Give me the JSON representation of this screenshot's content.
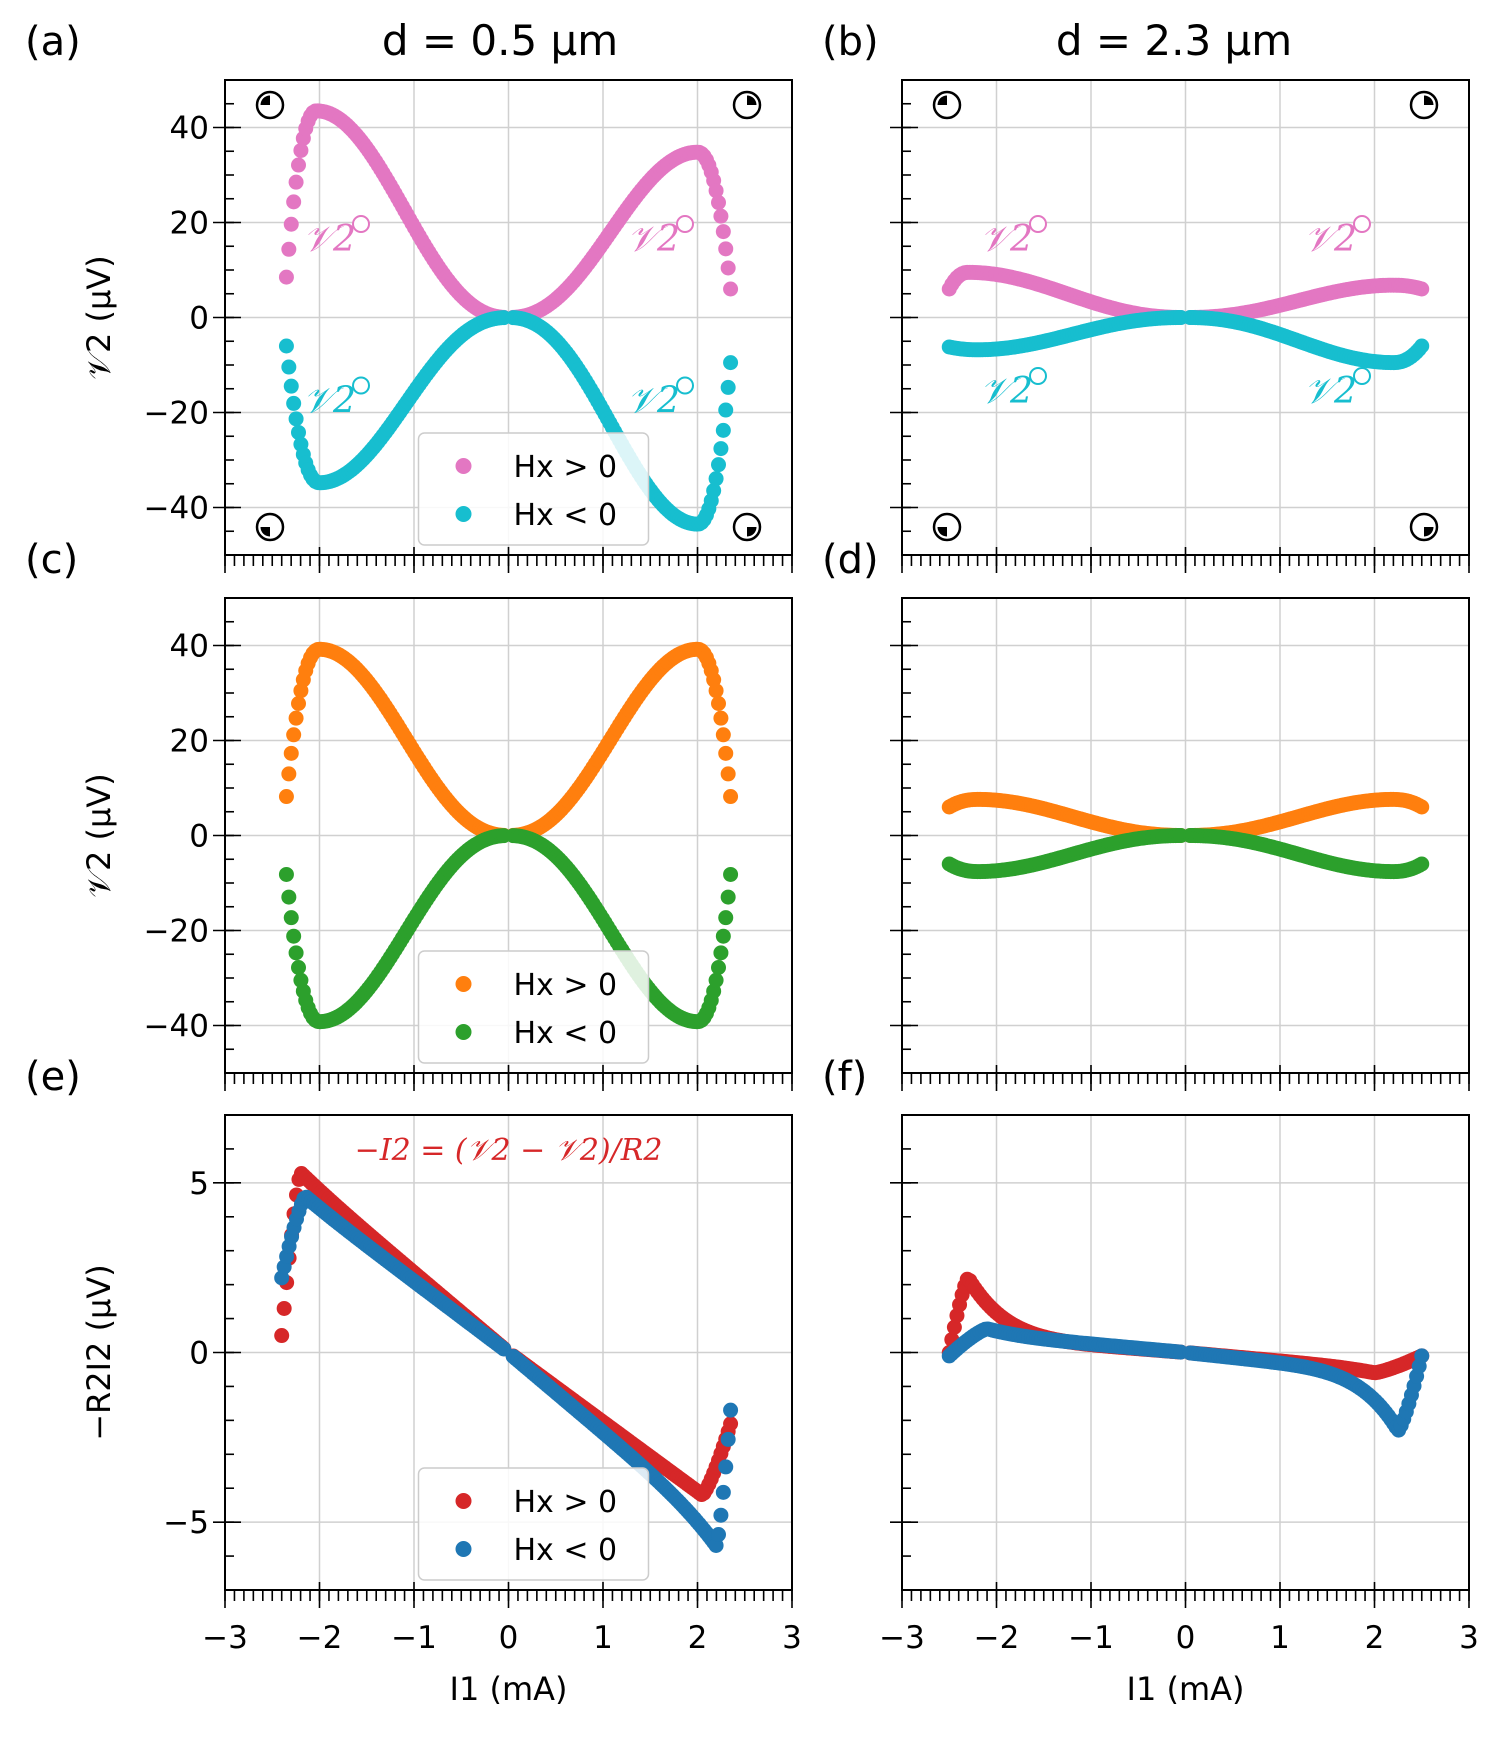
{
  "figure": {
    "column_titles": [
      "d = 0.5 μm",
      "d = 2.3 μm"
    ],
    "x_axis_label": "I1 (mA)",
    "x_ticks": [
      "−3",
      "−2",
      "−1",
      "0",
      "1",
      "2",
      "3"
    ]
  },
  "chart_data": [
    {
      "panel": "(a)",
      "type": "scatter",
      "ylabel": "𝒱2 (μV)",
      "xlim": [
        -3,
        3
      ],
      "ylim": [
        -50,
        50
      ],
      "yticks": [
        40,
        20,
        0,
        -20,
        -40
      ],
      "ytick_labels": [
        "40",
        "20",
        "0",
        "−20",
        "−40"
      ],
      "show_ytick_labels": true,
      "show_legend": true,
      "legend_placement": "lower-center",
      "annotations": [
        "𝒱2",
        "𝒱2",
        "𝒱2",
        "𝒱2"
      ],
      "series": [
        {
          "name": "Hx > 0",
          "color": "#e377c2",
          "kind": "bell",
          "peak": 43.5,
          "peak_x_neg": -2.03,
          "peak_x_pos": 2.0,
          "peak_pos": 34.8,
          "end_x_neg": -2.35,
          "end_x_pos": 2.35,
          "end_neg": 8.5,
          "end_pos": 6.0
        },
        {
          "name": "Hx < 0",
          "color": "#17becf",
          "kind": "bell",
          "peak": -34.8,
          "peak_x_neg": -2.0,
          "peak_x_pos": 2.0,
          "peak_pos": -43.5,
          "end_x_neg": -2.35,
          "end_x_pos": 2.35,
          "end_neg": -6.0,
          "end_pos": -9.5
        }
      ]
    },
    {
      "panel": "(b)",
      "type": "scatter",
      "ylabel": "",
      "xlim": [
        -3,
        3
      ],
      "ylim": [
        -50,
        50
      ],
      "yticks": [
        40,
        20,
        0,
        -20,
        -40
      ],
      "ytick_labels": [],
      "show_ytick_labels": false,
      "show_legend": false,
      "annotations": [
        "𝒱2",
        "𝒱2",
        "𝒱2",
        "𝒱2"
      ],
      "series": [
        {
          "name": "Hx > 0",
          "color": "#e377c2",
          "kind": "bell",
          "peak": 9.5,
          "peak_x_neg": -2.3,
          "peak_x_pos": 2.2,
          "peak_pos": 6.8,
          "end_x_neg": -2.5,
          "end_x_pos": 2.5,
          "end_neg": 6.0,
          "end_pos": 6.0
        },
        {
          "name": "Hx < 0",
          "color": "#17becf",
          "kind": "bell",
          "peak": -6.8,
          "peak_x_neg": -2.2,
          "peak_x_pos": 2.2,
          "peak_pos": -9.5,
          "end_x_neg": -2.5,
          "end_x_pos": 2.5,
          "end_neg": -6.2,
          "end_pos": -6.0
        }
      ]
    },
    {
      "panel": "(c)",
      "type": "scatter",
      "ylabel": "𝒱2 (μV)",
      "xlim": [
        -3,
        3
      ],
      "ylim": [
        -50,
        50
      ],
      "yticks": [
        40,
        20,
        0,
        -20,
        -40
      ],
      "ytick_labels": [
        "40",
        "20",
        "0",
        "−20",
        "−40"
      ],
      "show_ytick_labels": true,
      "show_legend": true,
      "legend_placement": "lower-center",
      "series": [
        {
          "name": "Hx > 0",
          "color": "#ff7f0e",
          "kind": "bell",
          "peak": 39.2,
          "peak_x_neg": -2.0,
          "peak_x_pos": 2.0,
          "peak_pos": 39.2,
          "end_x_neg": -2.35,
          "end_x_pos": 2.35,
          "end_neg": 8.2,
          "end_pos": 8.2
        },
        {
          "name": "Hx < 0",
          "color": "#2ca02c",
          "kind": "bell",
          "peak": -39.2,
          "peak_x_neg": -2.0,
          "peak_x_pos": 2.0,
          "peak_pos": -39.2,
          "end_x_neg": -2.35,
          "end_x_pos": 2.35,
          "end_neg": -8.2,
          "end_pos": -8.2
        }
      ]
    },
    {
      "panel": "(d)",
      "type": "scatter",
      "ylabel": "",
      "xlim": [
        -3,
        3
      ],
      "ylim": [
        -50,
        50
      ],
      "yticks": [
        40,
        20,
        0,
        -20,
        -40
      ],
      "ytick_labels": [],
      "show_ytick_labels": false,
      "show_legend": false,
      "series": [
        {
          "name": "Hx > 0",
          "color": "#ff7f0e",
          "kind": "bell",
          "peak": 7.6,
          "peak_x_neg": -2.2,
          "peak_x_pos": 2.2,
          "peak_pos": 7.6,
          "end_x_neg": -2.5,
          "end_x_pos": 2.5,
          "end_neg": 6.0,
          "end_pos": 6.0
        },
        {
          "name": "Hx < 0",
          "color": "#2ca02c",
          "kind": "bell",
          "peak": -7.6,
          "peak_x_neg": -2.2,
          "peak_x_pos": 2.2,
          "peak_pos": -7.6,
          "end_x_neg": -2.5,
          "end_x_pos": 2.5,
          "end_neg": -6.0,
          "end_pos": -6.0
        }
      ]
    },
    {
      "panel": "(e)",
      "type": "scatter",
      "ylabel": "−R2I2 (μV)",
      "xlim": [
        -3,
        3
      ],
      "ylim": [
        -7,
        7
      ],
      "yticks": [
        5,
        0,
        -5
      ],
      "ytick_labels": [
        "5",
        "0",
        "−5"
      ],
      "show_ytick_labels": true,
      "show_legend": true,
      "legend_placement": "lower-center",
      "formula": "−I2 = (𝒱2 − 𝒱2)/R2",
      "series": [
        {
          "name": "Hx > 0",
          "color": "#d62728",
          "kind": "line",
          "slope_neg": -2.35,
          "slope_pos": -2.05,
          "peak_x_neg": -2.2,
          "peak_neg": 5.3,
          "peak_x_pos": 2.05,
          "peak_pos": -4.2,
          "end_x_neg": -2.4,
          "end_neg": 0.5,
          "end_x_pos": 2.35,
          "end_pos": -2.1
        },
        {
          "name": "Hx < 0",
          "color": "#1f77b4",
          "kind": "line",
          "slope_neg": -2.1,
          "slope_pos": -2.35,
          "peak_x_neg": -2.15,
          "peak_neg": 4.6,
          "peak_x_pos": 2.2,
          "peak_pos": -5.7,
          "end_x_neg": -2.4,
          "end_neg": 2.2,
          "end_x_pos": 2.35,
          "end_pos": -1.7
        }
      ]
    },
    {
      "panel": "(f)",
      "type": "scatter",
      "ylabel": "",
      "xlim": [
        -3,
        3
      ],
      "ylim": [
        -7,
        7
      ],
      "yticks": [
        5,
        0,
        -5
      ],
      "ytick_labels": [],
      "show_ytick_labels": false,
      "show_legend": false,
      "series": [
        {
          "name": "Hx > 0",
          "color": "#d62728",
          "kind": "line",
          "slope_neg": -0.22,
          "slope_pos": -0.25,
          "peak_x_neg": -2.3,
          "peak_neg": 2.2,
          "peak_x_pos": 2.0,
          "peak_pos": -0.6,
          "end_x_neg": -2.5,
          "end_neg": 0.0,
          "end_x_pos": 2.5,
          "end_pos": -0.1
        },
        {
          "name": "Hx < 0",
          "color": "#1f77b4",
          "kind": "line",
          "slope_neg": -0.25,
          "slope_pos": -0.3,
          "peak_x_neg": -2.1,
          "peak_neg": 0.7,
          "peak_x_pos": 2.25,
          "peak_pos": -2.3,
          "end_x_neg": -2.5,
          "end_neg": -0.1,
          "end_x_pos": 2.5,
          "end_pos": -0.1
        }
      ]
    }
  ]
}
